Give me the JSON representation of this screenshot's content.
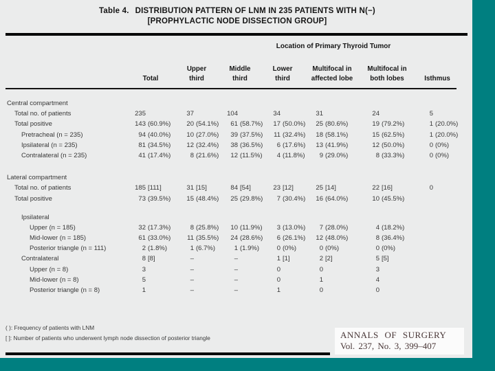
{
  "slide": {
    "page_bg": "#ebecec",
    "accent_teal": "#007f80"
  },
  "table": {
    "title_prefix": "Table 4.",
    "title_line1": "DISTRIBUTION PATTERN OF LNM IN 235 PATIENTS WITH N(−)",
    "title_line2": "[PROPHYLACTIC NODE DISSECTION GROUP]",
    "spanner": "Location of Primary Thyroid Tumor",
    "columns": [
      "Total",
      "Upper third",
      "Middle third",
      "Lower third",
      "Multifocal in affected lobe",
      "Multifocal in both lobes",
      "Isthmus"
    ],
    "rows": [
      {
        "label": "Central compartment",
        "indent": 0,
        "cells": []
      },
      {
        "label": "Total no. of patients",
        "indent": 1,
        "cells": [
          "235",
          "37",
          "104",
          "34",
          "31",
          "24",
          "5"
        ]
      },
      {
        "label": "Total positive",
        "indent": 1,
        "cells": [
          "143 (60.9%)",
          "20 (54.1%)",
          "61 (58.7%)",
          "17 (50.0%)",
          "25 (80.6%)",
          "19 (79.2%)",
          "1 (20.0%)"
        ]
      },
      {
        "label": "Pretracheal (n = 235)",
        "indent": 2,
        "cells": [
          "94 (40.0%)",
          "10 (27.0%)",
          "39 (37.5%)",
          "11 (32.4%)",
          "18 (58.1%)",
          "15 (62.5%)",
          "1 (20.0%)"
        ]
      },
      {
        "label": "Ipsilateral (n = 235)",
        "indent": 2,
        "cells": [
          "81 (34.5%)",
          "12 (32.4%)",
          "38 (36.5%)",
          "6 (17.6%)",
          "13 (41.9%)",
          "12 (50.0%)",
          "0 (0%)"
        ]
      },
      {
        "label": "Contralateral (n = 235)",
        "indent": 2,
        "cells": [
          "41 (17.4%)",
          "8 (21.6%)",
          "12 (11.5%)",
          "4 (11.8%)",
          "9 (29.0%)",
          "8 (33.3%)",
          "0 (0%)"
        ]
      },
      {
        "label": "Lateral compartment",
        "indent": 0,
        "gap": "lg",
        "cells": []
      },
      {
        "label": "Total no. of patients",
        "indent": 1,
        "cells": [
          "185 [111]",
          "31 [15]",
          "84 [54]",
          "23 [12]",
          "25 [14]",
          "22 [16]",
          "0"
        ]
      },
      {
        "label": "Total positive",
        "indent": 1,
        "cells": [
          "73 (39.5%)",
          "15 (48.4%)",
          "25 (29.8%)",
          "7 (30.4%)",
          "16 (64.0%)",
          "10 (45.5%)",
          ""
        ]
      },
      {
        "label": "Ipsilateral",
        "indent": 2,
        "gap": "sm",
        "cells": []
      },
      {
        "label": "Upper (n = 185)",
        "indent": 3,
        "cells": [
          "32 (17.3%)",
          "8 (25.8%)",
          "10 (11.9%)",
          "3 (13.0%)",
          "7 (28.0%)",
          "4 (18.2%)",
          ""
        ]
      },
      {
        "label": "Mid-lower (n = 185)",
        "indent": 3,
        "cells": [
          "61 (33.0%)",
          "11 (35.5%)",
          "24 (28.6%)",
          "6 (26.1%)",
          "12 (48.0%)",
          "8 (36.4%)",
          ""
        ]
      },
      {
        "label": "Posterior triangle (n = 111)",
        "indent": 3,
        "cells": [
          "2 (1.8%)",
          "1 (6.7%)",
          "1 (1.9%)",
          "0 (0%)",
          "0 (0%)",
          "0 (0%)",
          ""
        ]
      },
      {
        "label": "Contralateral",
        "indent": 2,
        "cells": [
          "8 [8]",
          "–",
          "–",
          "1 [1]",
          "2 [2]",
          "5 [5]",
          ""
        ]
      },
      {
        "label": "Upper (n = 8)",
        "indent": 3,
        "cells": [
          "3",
          "–",
          "–",
          "0",
          "0",
          "3",
          ""
        ]
      },
      {
        "label": "Mid-lower (n = 8)",
        "indent": 3,
        "cells": [
          "5",
          "–",
          "–",
          "0",
          "1",
          "4",
          ""
        ]
      },
      {
        "label": "Posterior triangle (n = 8)",
        "indent": 3,
        "cells": [
          "1",
          "–",
          "–",
          "1",
          "0",
          "0",
          ""
        ]
      }
    ],
    "footnotes": [
      "( ): Frequency of patients with LNM",
      "[ ]: Number of patients who underwent lymph node dissection of posterior triangle"
    ]
  },
  "citation": {
    "journal": "ANNALS OF SURGERY",
    "volume": "Vol. 237, No. 3, 399–407"
  }
}
